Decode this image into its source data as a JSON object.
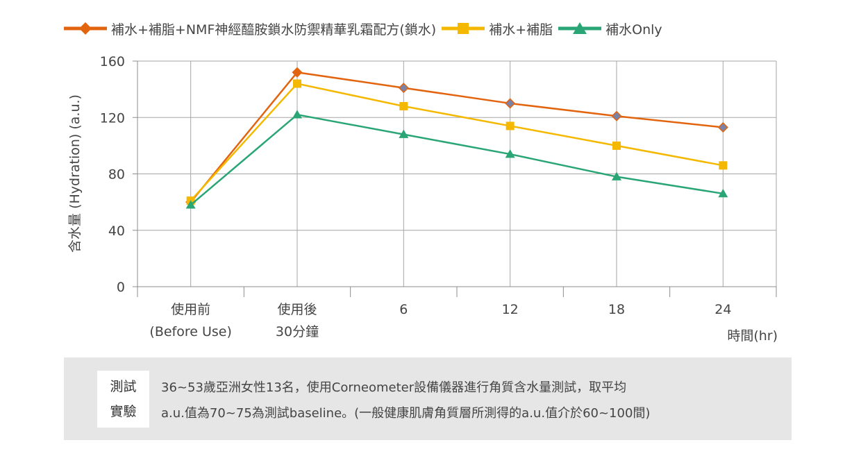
{
  "chart_data": {
    "type": "line",
    "categories": [
      "使用前",
      "使用後",
      "6",
      "12",
      "18",
      "24"
    ],
    "category_sublabels": [
      "(Before Use)",
      "30分鐘",
      "",
      "",
      "",
      ""
    ],
    "series": [
      {
        "name": "補水+補脂+NMF神經醯胺鎖水防禦精華乳霜配方(鎖水)",
        "color": "#e2640f",
        "marker": "diamond",
        "values": [
          60,
          152,
          141,
          130,
          121,
          113
        ]
      },
      {
        "name": "補水+補脂",
        "color": "#f5b800",
        "marker": "square",
        "values": [
          61,
          144,
          128,
          114,
          100,
          86
        ]
      },
      {
        "name": "補水Only",
        "color": "#2aa676",
        "marker": "triangle",
        "values": [
          58,
          122,
          108,
          94,
          78,
          66
        ]
      }
    ],
    "ylabel": "含水量 (Hydration) (a.u.)",
    "xlabel": "時間(hr)",
    "ylim": [
      0,
      160
    ],
    "yticks": [
      "0",
      "40",
      "80",
      "120",
      "160"
    ],
    "grid": true,
    "legend_position": "top"
  },
  "note": {
    "label_line1": "測試",
    "label_line2": "實驗",
    "line1": "36~53歲亞洲女性13名，使用Corneometer設備儀器進行角質含水量測試，取平均",
    "line2": "a.u.值為70~75為測試baseline。(一般健康肌膚角質層所測得的a.u.值介於60~100間)"
  }
}
